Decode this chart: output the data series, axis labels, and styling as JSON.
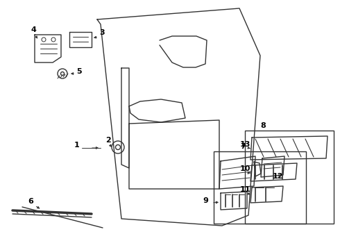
{
  "bg_color": "#ffffff",
  "line_color": "#333333",
  "label_color": "#000000",
  "fig_width": 4.9,
  "fig_height": 3.6,
  "dpi": 100
}
